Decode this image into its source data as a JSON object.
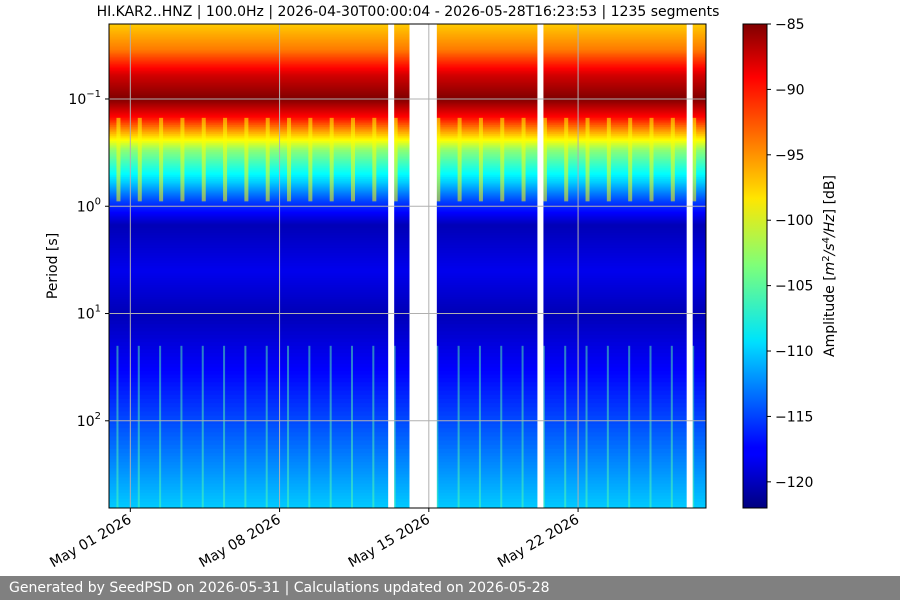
{
  "chart_data": {
    "type": "heatmap",
    "title": "HI.KAR2..HNZ | 100.0Hz | 2026-04-30T00:00:04 - 2026-05-28T16:23:53 | 1235 segments",
    "ylabel": "Period [s]",
    "y_scale": "log",
    "y_axis_inverted": true,
    "ylim": [
      0.02,
      650
    ],
    "x_start": "2026-04-30",
    "x_end": "2026-05-28",
    "y_ticks": [
      {
        "value": 0.1,
        "base": "10",
        "exp": "−1"
      },
      {
        "value": 1,
        "base": "10",
        "exp": "0"
      },
      {
        "value": 10,
        "base": "10",
        "exp": "1"
      },
      {
        "value": 100,
        "base": "10",
        "exp": "2"
      }
    ],
    "x_ticks": [
      {
        "date": "2026-05-01",
        "label": "May 01 2026"
      },
      {
        "date": "2026-05-08",
        "label": "May 08 2026"
      },
      {
        "date": "2026-05-15",
        "label": "May 15 2026"
      },
      {
        "date": "2026-05-22",
        "label": "May 22 2026"
      }
    ],
    "grid": true,
    "data_gaps": [
      {
        "start": "2026-05-13",
        "end": "2026-05-13"
      },
      {
        "start": "2026-05-14",
        "end": "2026-05-15"
      },
      {
        "start": "2026-05-20",
        "end": "2026-05-20"
      },
      {
        "start": "2026-05-27",
        "end": "2026-05-27"
      }
    ],
    "colorbar": {
      "label_prefix": "Amplitude [",
      "label_unit": "m",
      "label_sup1": "2",
      "label_mid": "/s",
      "label_sup2": "4",
      "label_tail": "/Hz",
      "label_suffix": "] [dB]",
      "colormap": "jet",
      "range": [
        -122,
        -85
      ],
      "ticks": [
        "−85",
        "−90",
        "−95",
        "−100",
        "−105",
        "−110",
        "−115",
        "−120"
      ],
      "tick_values": [
        -85,
        -90,
        -95,
        -100,
        -105,
        -110,
        -115,
        -120
      ]
    },
    "amplitude_profile_db": [
      {
        "period": 0.02,
        "db": -97
      },
      {
        "period": 0.035,
        "db": -94
      },
      {
        "period": 0.06,
        "db": -88
      },
      {
        "period": 0.1,
        "db": -85
      },
      {
        "period": 0.15,
        "db": -90
      },
      {
        "period": 0.3,
        "db": -103
      },
      {
        "period": 0.6,
        "db": -110
      },
      {
        "period": 0.9,
        "db": -115
      },
      {
        "period": 1.5,
        "db": -120
      },
      {
        "period": 4,
        "db": -118
      },
      {
        "period": 10,
        "db": -120
      },
      {
        "period": 40,
        "db": -117
      },
      {
        "period": 200,
        "db": -113
      },
      {
        "period": 650,
        "db": -110
      }
    ]
  },
  "footer": {
    "text": "Generated by SeedPSD on 2026-05-31 | Calculations updated on 2026-05-28"
  }
}
